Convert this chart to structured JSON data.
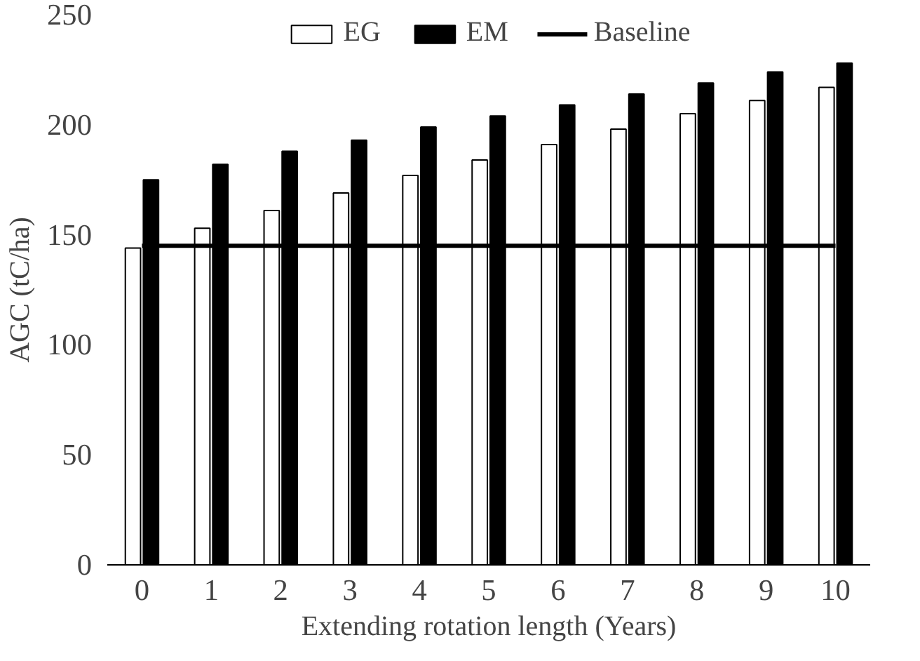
{
  "chart_data": {
    "type": "bar",
    "xlabel": "Extending rotation length (Years)",
    "ylabel": "AGC (tC/ha)",
    "categories": [
      "0",
      "1",
      "2",
      "3",
      "4",
      "5",
      "6",
      "7",
      "8",
      "9",
      "10"
    ],
    "series": [
      {
        "name": "EG",
        "color": "#ffffff",
        "values": [
          144,
          153,
          161,
          169,
          177,
          184,
          191,
          198,
          205,
          211,
          217
        ]
      },
      {
        "name": "EM",
        "color": "#000000",
        "values": [
          175,
          182,
          188,
          193,
          199,
          204,
          209,
          214,
          219,
          224,
          228
        ]
      },
      {
        "name": "Baseline",
        "type": "line",
        "color": "#000000",
        "values": [
          145,
          145,
          145,
          145,
          145,
          145,
          145,
          145,
          145,
          145,
          145
        ]
      }
    ],
    "ylim": [
      0,
      250
    ],
    "yticks": [
      0,
      50,
      100,
      150,
      200,
      250
    ],
    "grid": false,
    "legend": "top"
  }
}
